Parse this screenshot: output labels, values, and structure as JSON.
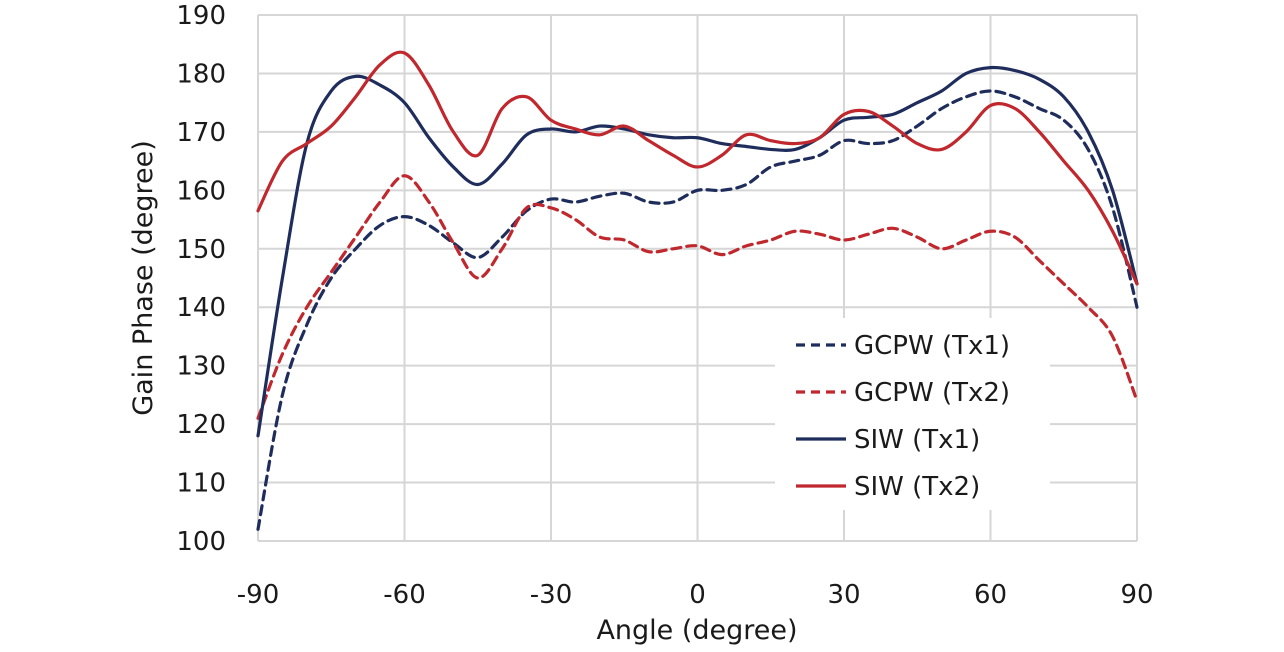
{
  "chart_data": {
    "type": "line",
    "title": "",
    "xlabel": "Angle (degree)",
    "ylabel": "Gain Phase (degree)",
    "xlim": [
      -90,
      90
    ],
    "ylim": [
      100,
      190
    ],
    "xticks": [
      -90,
      -60,
      -30,
      0,
      30,
      60,
      90
    ],
    "yticks": [
      100,
      110,
      120,
      130,
      140,
      150,
      160,
      170,
      180,
      190
    ],
    "grid": true,
    "legend_position": "bottom-right",
    "series": [
      {
        "name": "GCPW (Tx1)",
        "color": "#1f2d5c",
        "dash": "dashed",
        "x": [
          -90,
          -85,
          -80,
          -75,
          -70,
          -65,
          -60,
          -55,
          -50,
          -45,
          -40,
          -35,
          -30,
          -25,
          -20,
          -15,
          -10,
          -5,
          0,
          5,
          10,
          15,
          20,
          25,
          30,
          35,
          40,
          45,
          50,
          55,
          60,
          65,
          70,
          75,
          80,
          85,
          90
        ],
        "values": [
          102,
          125,
          137,
          145,
          150,
          154,
          155.5,
          154,
          151,
          148.5,
          152,
          156.5,
          158.5,
          158,
          159,
          159.5,
          158,
          158,
          160,
          160,
          161,
          164,
          165,
          166,
          168.5,
          168,
          168.5,
          171,
          174,
          176,
          177,
          176,
          174,
          172,
          167,
          157,
          140
        ]
      },
      {
        "name": "GCPW (Tx2)",
        "color": "#c0282d",
        "dash": "dashed",
        "x": [
          -90,
          -85,
          -80,
          -75,
          -70,
          -65,
          -60,
          -55,
          -50,
          -45,
          -40,
          -35,
          -30,
          -25,
          -20,
          -15,
          -10,
          -5,
          0,
          5,
          10,
          15,
          20,
          25,
          30,
          35,
          40,
          45,
          50,
          55,
          60,
          65,
          70,
          75,
          80,
          85,
          90
        ],
        "values": [
          121,
          132,
          140,
          146,
          152,
          158,
          162.5,
          158,
          151,
          145,
          150,
          157,
          157,
          155,
          152,
          151.5,
          149.5,
          150,
          150.5,
          149,
          150.5,
          151.5,
          153,
          152.5,
          151.5,
          152.5,
          153.5,
          152,
          150,
          151.5,
          153,
          152,
          148,
          144,
          140,
          135,
          124
        ]
      },
      {
        "name": "SIW (Tx1)",
        "color": "#1f2d5c",
        "dash": "solid",
        "x": [
          -90,
          -85,
          -80,
          -75,
          -70,
          -65,
          -60,
          -55,
          -50,
          -45,
          -40,
          -35,
          -30,
          -25,
          -20,
          -15,
          -10,
          -5,
          0,
          5,
          10,
          15,
          20,
          25,
          30,
          35,
          40,
          45,
          50,
          55,
          60,
          65,
          70,
          75,
          80,
          85,
          90
        ],
        "values": [
          118,
          145,
          168,
          177,
          179.5,
          178,
          175,
          169,
          164,
          161,
          164.5,
          169.5,
          170.5,
          170,
          171,
          170.5,
          169.5,
          169,
          169,
          168,
          167.5,
          167,
          167,
          169,
          172,
          172.5,
          173,
          175,
          177,
          180,
          181,
          180.5,
          179,
          176,
          170,
          160,
          144
        ]
      },
      {
        "name": "SIW (Tx2)",
        "color": "#c0282d",
        "dash": "solid",
        "x": [
          -90,
          -85,
          -80,
          -75,
          -70,
          -65,
          -60,
          -55,
          -50,
          -45,
          -40,
          -35,
          -30,
          -25,
          -20,
          -15,
          -10,
          -5,
          0,
          5,
          10,
          15,
          20,
          25,
          30,
          35,
          40,
          45,
          50,
          55,
          60,
          65,
          70,
          75,
          80,
          85,
          90
        ],
        "values": [
          156.5,
          165,
          168,
          171,
          176,
          181.5,
          183.5,
          178,
          170,
          166,
          174,
          176,
          172,
          170.5,
          169.5,
          171,
          168.5,
          166,
          164,
          166,
          169.5,
          168.5,
          168,
          169,
          173,
          173.5,
          171,
          168,
          167,
          170,
          174.5,
          174,
          170,
          165,
          160,
          153,
          144
        ]
      }
    ]
  }
}
